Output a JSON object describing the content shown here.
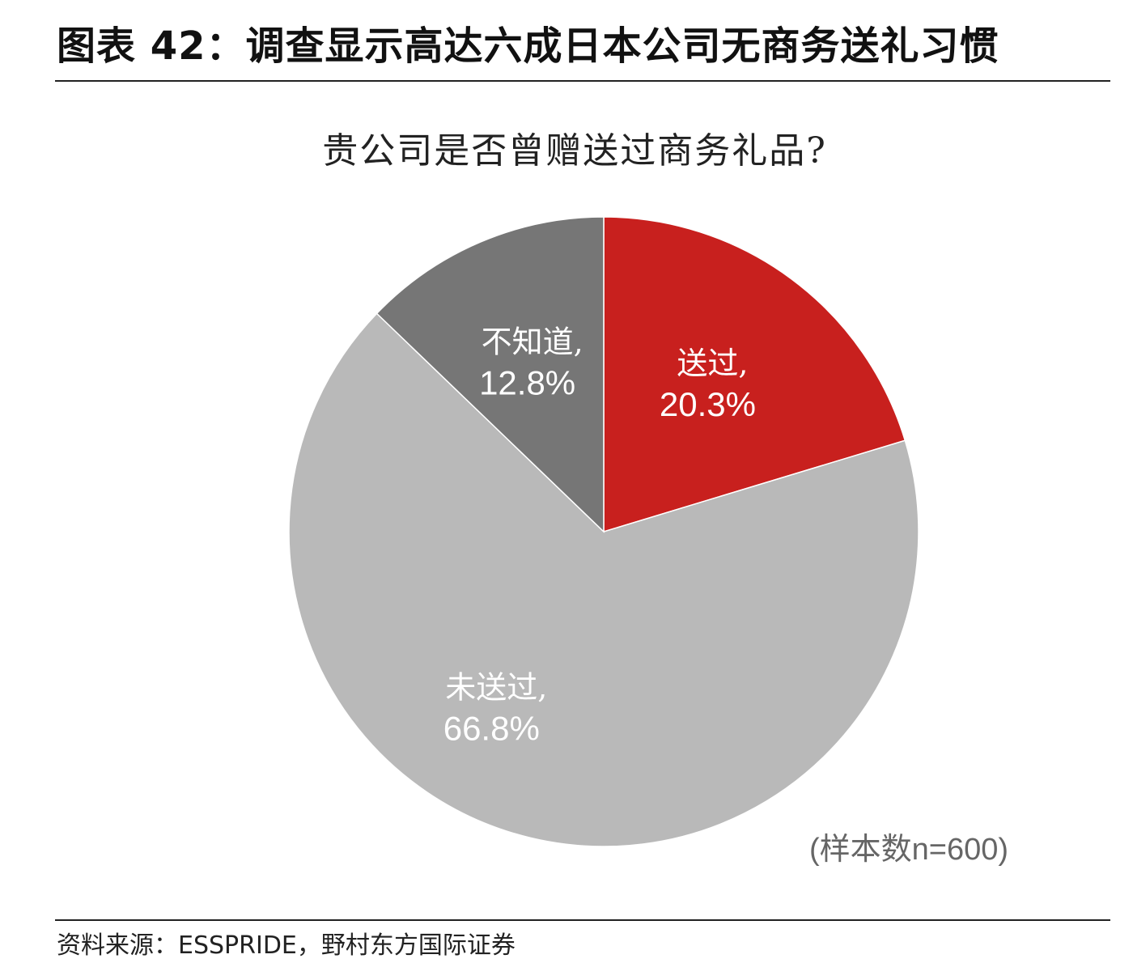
{
  "figure": {
    "title": "图表 42：调查显示高达六成日本公司无商务送礼习惯",
    "source": "资料来源：ESSPRIDE，野村东方国际证券",
    "sample_note": "(样本数n=600)"
  },
  "chart_data": {
    "type": "pie",
    "title": "贵公司是否曾赠送过商务礼品?",
    "start_angle_deg": 0,
    "direction": "clockwise",
    "slices": [
      {
        "name": "送过,",
        "value": 20.3,
        "label": "20.3%",
        "color": "#C8201E"
      },
      {
        "name": "未送过,",
        "value": 66.8,
        "label": "66.8%",
        "color": "#B9B9B9"
      },
      {
        "name": "不知道,",
        "value": 12.8,
        "label": "12.8%",
        "color": "#767676"
      }
    ]
  }
}
